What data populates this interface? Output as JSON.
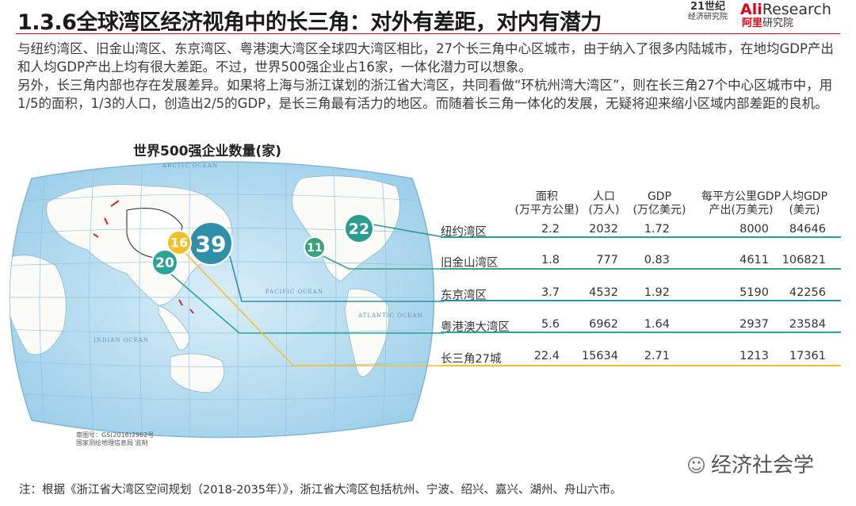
{
  "title": "1.3.6全球湾区经济视角中的长三角：对外有差距，对内有潜力",
  "logos": {
    "logo_21_seal": "21世纪",
    "logo_21_sub": "经济研究院",
    "ali_prefix": "Ali",
    "ali_suffix": "Research",
    "ali_inst_red": "阿里",
    "ali_inst_dark": "研究院"
  },
  "paragraphs": [
    "与纽约湾区、旧金山湾区、东京湾区、粤港澳大湾区全球四大湾区相比，27个长三角中心区城市，由于纳入了很多内陆城市，在地均GDP产出和人均GDP产出上均有很大差距。不过，世界500强企业占16家，一体化潜力可以想象。",
    "另外，长三角内部也存在发展差异。如果将上海与浙江谋划的浙江省大湾区，共同看做“环杭州湾大湾区”，则在长三角27个中心区城市中，用1/5的面积，1/3的人口，创造出2/5的GDP，是长三角最有活力的地区。而随着长三角一体化的发展，无疑将迎来缩小区域内部差距的良机。"
  ],
  "map": {
    "title": "世界500强企业数量(家)",
    "ocean_labels": [
      "ARCTIC OCEAN",
      "PACIFIC OCEAN",
      "INDIAN OCEAN",
      "ATLANTIC OCEAN"
    ],
    "approval_line1": "审图号：GS(2016)2962号",
    "approval_line2": "国家测绘地理信息局 监制"
  },
  "chart_data": {
    "type": "table",
    "title": "世界500强企业数量(家)",
    "columns": [
      {
        "line1": "面积",
        "line2": "(万平方公里)"
      },
      {
        "line1": "人口",
        "line2": "(万人)"
      },
      {
        "line1": "GDP",
        "line2": "(万亿美元)"
      },
      {
        "line1": "每平方公里GDP",
        "line2": "产出(万美元)"
      },
      {
        "line1": "人均GDP",
        "line2": "(美元)"
      }
    ],
    "rows": [
      {
        "name": "纽约湾区",
        "values": [
          "2.2",
          "2032",
          "1.72",
          "8000",
          "84646"
        ],
        "fortune500": 22,
        "color": "#2a9d8f"
      },
      {
        "name": "旧金山湾区",
        "values": [
          "1.8",
          "777",
          "0.83",
          "4611",
          "106821"
        ],
        "fortune500": 11,
        "color": "#3aa37b"
      },
      {
        "name": "东京湾区",
        "values": [
          "3.7",
          "4532",
          "1.92",
          "5190",
          "42256"
        ],
        "fortune500": 39,
        "color": "#2f8fa8"
      },
      {
        "name": "粤港澳大湾区",
        "values": [
          "5.6",
          "6962",
          "1.64",
          "2937",
          "23584"
        ],
        "fortune500": 20,
        "color": "#2aa39a"
      },
      {
        "name": "长三角27城",
        "values": [
          "22.4",
          "15634",
          "2.71",
          "1213",
          "17361"
        ],
        "fortune500": 16,
        "color": "#f4c02a"
      }
    ]
  },
  "footnote": "注：根据《浙江省大湾区空间规划（2018-2035年）》，浙江省大湾区包括杭州、宁波、绍兴、嘉兴、湖州、舟山六市。",
  "watermark": "经济社会学"
}
